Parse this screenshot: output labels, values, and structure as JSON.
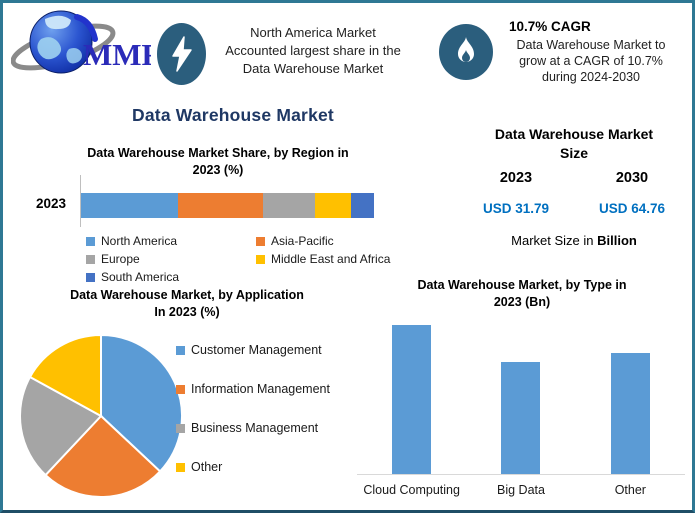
{
  "header": {
    "badge_color": "#2B5E7D",
    "logo": {
      "text": "MMR"
    },
    "callout_left": {
      "lines": [
        "North America Market",
        "Accounted largest share in the",
        "Data Warehouse Market"
      ]
    },
    "callout_right": {
      "title": "10.7% CAGR",
      "lines": [
        "Data Warehouse Market to",
        "grow at a CAGR of 10.7%",
        "during 2024-2030"
      ]
    }
  },
  "main_title": {
    "text": "Data Warehouse Market",
    "color": "#1F3864"
  },
  "region_chart": {
    "title_line1": "Data Warehouse Market Share, by Region in",
    "title_line2": "2023 (%)",
    "axis_label": "2023"
  },
  "market_size": {
    "title_line1": "Data Warehouse Market",
    "title_line2": "Size",
    "year_left": "2023",
    "year_right": "2030",
    "value_left": "USD 31.79",
    "value_right": "USD 64.76",
    "value_color": "#0070C0",
    "footnote_regular": "Market Size in ",
    "footnote_bold": "Billion"
  },
  "application_chart": {
    "title_line1": "Data Warehouse Market, by Application",
    "title_line2": "In 2023 (%)"
  },
  "type_chart": {
    "title_line1": "Data Warehouse Market, by Type in",
    "title_line2": "2023 (Bn)"
  },
  "chart_data": [
    {
      "id": "region_share",
      "type": "bar",
      "variant": "stacked-horizontal",
      "title": "Data Warehouse Market Share, by Region in 2023 (%)",
      "categories": [
        "2023"
      ],
      "series": [
        {
          "name": "North America",
          "color": "#5B9BD5",
          "values": [
            33
          ]
        },
        {
          "name": "Asia-Pacific",
          "color": "#ED7D31",
          "values": [
            29
          ]
        },
        {
          "name": "Europe",
          "color": "#A5A5A5",
          "values": [
            18
          ]
        },
        {
          "name": "Middle East and Africa",
          "color": "#FFC000",
          "values": [
            12
          ]
        },
        {
          "name": "South America",
          "color": "#4472C4",
          "values": [
            8
          ]
        }
      ],
      "xlim": [
        0,
        100
      ],
      "grid": false,
      "legend_position": "bottom"
    },
    {
      "id": "application_share",
      "type": "pie",
      "title": "Data Warehouse Market, by Application In 2023 (%)",
      "labels": [
        "Customer Management",
        "Information Management",
        "Business Management",
        "Other"
      ],
      "values": [
        37,
        25,
        21,
        17
      ],
      "colors": [
        "#5B9BD5",
        "#ED7D31",
        "#A5A5A5",
        "#FFC000"
      ],
      "start_angle_deg": 0,
      "direction": "clockwise",
      "legend_position": "right"
    },
    {
      "id": "type_market",
      "type": "bar",
      "title": "Data Warehouse Market, by Type in 2023 (Bn)",
      "categories": [
        "Cloud Computing",
        "Big Data",
        "Other"
      ],
      "values": [
        12.4,
        9.3,
        10.1
      ],
      "color": "#5B9BD5",
      "ylim": [
        0,
        13.4
      ],
      "grid": false,
      "legend_position": "none"
    }
  ]
}
